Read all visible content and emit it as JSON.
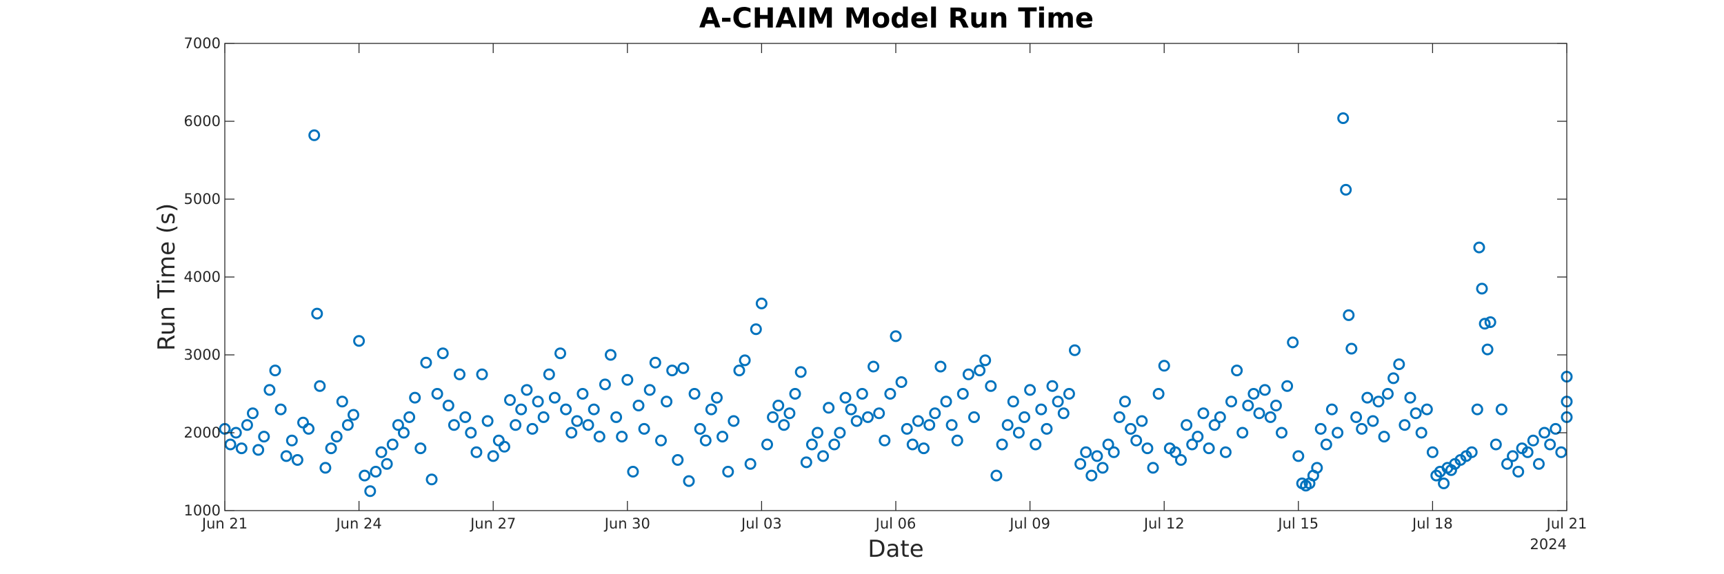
{
  "chart_data": {
    "type": "scatter",
    "title": "A-CHAIM Model Run Time",
    "xlabel": "Date",
    "ylabel": "Run Time (s)",
    "x_secondary_label": "2024",
    "x_type": "date",
    "xlim": [
      "2024-06-21",
      "2024-07-21"
    ],
    "ylim": [
      1000,
      7000
    ],
    "x_tick_labels": [
      "Jun 21",
      "Jun 24",
      "Jun 27",
      "Jun 30",
      "Jul 03",
      "Jul 06",
      "Jul 09",
      "Jul 12",
      "Jul 15",
      "Jul 18",
      "Jul 21"
    ],
    "x_tick_dates": [
      "2024-06-21",
      "2024-06-24",
      "2024-06-27",
      "2024-06-30",
      "2024-07-03",
      "2024-07-06",
      "2024-07-09",
      "2024-07-12",
      "2024-07-15",
      "2024-07-18",
      "2024-07-21"
    ],
    "y_ticks": [
      1000,
      2000,
      3000,
      4000,
      5000,
      6000,
      7000
    ],
    "grid": false,
    "legend": "none",
    "marker": "circle-open",
    "color": "#0072BD",
    "series": [
      {
        "points": [
          [
            "2024-06-21 00:00",
            2050
          ],
          [
            "2024-06-21 03:00",
            1850
          ],
          [
            "2024-06-21 06:00",
            2000
          ],
          [
            "2024-06-21 09:00",
            1800
          ],
          [
            "2024-06-21 12:00",
            2100
          ],
          [
            "2024-06-21 15:00",
            2250
          ],
          [
            "2024-06-21 18:00",
            1780
          ],
          [
            "2024-06-21 21:00",
            1950
          ],
          [
            "2024-06-22 00:00",
            2550
          ],
          [
            "2024-06-22 03:00",
            2800
          ],
          [
            "2024-06-22 06:00",
            2300
          ],
          [
            "2024-06-22 09:00",
            1700
          ],
          [
            "2024-06-22 12:00",
            1900
          ],
          [
            "2024-06-22 15:00",
            1650
          ],
          [
            "2024-06-22 18:00",
            2130
          ],
          [
            "2024-06-22 21:00",
            2050
          ],
          [
            "2024-06-23 00:00",
            5820
          ],
          [
            "2024-06-23 01:30",
            3530
          ],
          [
            "2024-06-23 03:00",
            2600
          ],
          [
            "2024-06-23 06:00",
            1550
          ],
          [
            "2024-06-23 09:00",
            1800
          ],
          [
            "2024-06-23 12:00",
            1950
          ],
          [
            "2024-06-23 15:00",
            2400
          ],
          [
            "2024-06-23 18:00",
            2100
          ],
          [
            "2024-06-23 21:00",
            2230
          ],
          [
            "2024-06-24 00:00",
            3180
          ],
          [
            "2024-06-24 03:00",
            1450
          ],
          [
            "2024-06-24 06:00",
            1250
          ],
          [
            "2024-06-24 09:00",
            1500
          ],
          [
            "2024-06-24 12:00",
            1750
          ],
          [
            "2024-06-24 15:00",
            1600
          ],
          [
            "2024-06-24 18:00",
            1850
          ],
          [
            "2024-06-24 21:00",
            2100
          ],
          [
            "2024-06-25 00:00",
            2000
          ],
          [
            "2024-06-25 03:00",
            2200
          ],
          [
            "2024-06-25 06:00",
            2450
          ],
          [
            "2024-06-25 09:00",
            1800
          ],
          [
            "2024-06-25 12:00",
            2900
          ],
          [
            "2024-06-25 15:00",
            1400
          ],
          [
            "2024-06-25 18:00",
            2500
          ],
          [
            "2024-06-25 21:00",
            3020
          ],
          [
            "2024-06-26 00:00",
            2350
          ],
          [
            "2024-06-26 03:00",
            2100
          ],
          [
            "2024-06-26 06:00",
            2750
          ],
          [
            "2024-06-26 09:00",
            2200
          ],
          [
            "2024-06-26 12:00",
            2000
          ],
          [
            "2024-06-26 15:00",
            1750
          ],
          [
            "2024-06-26 18:00",
            2750
          ],
          [
            "2024-06-26 21:00",
            2150
          ],
          [
            "2024-06-27 00:00",
            1700
          ],
          [
            "2024-06-27 03:00",
            1900
          ],
          [
            "2024-06-27 06:00",
            1820
          ],
          [
            "2024-06-27 09:00",
            2420
          ],
          [
            "2024-06-27 12:00",
            2100
          ],
          [
            "2024-06-27 15:00",
            2300
          ],
          [
            "2024-06-27 18:00",
            2550
          ],
          [
            "2024-06-27 21:00",
            2050
          ],
          [
            "2024-06-28 00:00",
            2400
          ],
          [
            "2024-06-28 03:00",
            2200
          ],
          [
            "2024-06-28 06:00",
            2750
          ],
          [
            "2024-06-28 09:00",
            2450
          ],
          [
            "2024-06-28 12:00",
            3020
          ],
          [
            "2024-06-28 15:00",
            2300
          ],
          [
            "2024-06-28 18:00",
            2000
          ],
          [
            "2024-06-28 21:00",
            2150
          ],
          [
            "2024-06-29 00:00",
            2500
          ],
          [
            "2024-06-29 03:00",
            2100
          ],
          [
            "2024-06-29 06:00",
            2300
          ],
          [
            "2024-06-29 09:00",
            1950
          ],
          [
            "2024-06-29 12:00",
            2620
          ],
          [
            "2024-06-29 15:00",
            3000
          ],
          [
            "2024-06-29 18:00",
            2200
          ],
          [
            "2024-06-29 21:00",
            1950
          ],
          [
            "2024-06-30 00:00",
            2680
          ],
          [
            "2024-06-30 03:00",
            1500
          ],
          [
            "2024-06-30 06:00",
            2350
          ],
          [
            "2024-06-30 09:00",
            2050
          ],
          [
            "2024-06-30 12:00",
            2550
          ],
          [
            "2024-06-30 15:00",
            2900
          ],
          [
            "2024-06-30 18:00",
            1900
          ],
          [
            "2024-06-30 21:00",
            2400
          ],
          [
            "2024-07-01 00:00",
            2800
          ],
          [
            "2024-07-01 03:00",
            1650
          ],
          [
            "2024-07-01 06:00",
            2830
          ],
          [
            "2024-07-01 09:00",
            1380
          ],
          [
            "2024-07-01 12:00",
            2500
          ],
          [
            "2024-07-01 15:00",
            2050
          ],
          [
            "2024-07-01 18:00",
            1900
          ],
          [
            "2024-07-01 21:00",
            2300
          ],
          [
            "2024-07-02 00:00",
            2450
          ],
          [
            "2024-07-02 03:00",
            1950
          ],
          [
            "2024-07-02 06:00",
            1500
          ],
          [
            "2024-07-02 09:00",
            2150
          ],
          [
            "2024-07-02 12:00",
            2800
          ],
          [
            "2024-07-02 15:00",
            2930
          ],
          [
            "2024-07-02 18:00",
            1600
          ],
          [
            "2024-07-02 21:00",
            3330
          ],
          [
            "2024-07-03 00:00",
            3660
          ],
          [
            "2024-07-03 03:00",
            1850
          ],
          [
            "2024-07-03 06:00",
            2200
          ],
          [
            "2024-07-03 09:00",
            2350
          ],
          [
            "2024-07-03 12:00",
            2100
          ],
          [
            "2024-07-03 15:00",
            2250
          ],
          [
            "2024-07-03 18:00",
            2500
          ],
          [
            "2024-07-03 21:00",
            2780
          ],
          [
            "2024-07-04 00:00",
            1620
          ],
          [
            "2024-07-04 03:00",
            1850
          ],
          [
            "2024-07-04 06:00",
            2000
          ],
          [
            "2024-07-04 09:00",
            1700
          ],
          [
            "2024-07-04 12:00",
            2320
          ],
          [
            "2024-07-04 15:00",
            1850
          ],
          [
            "2024-07-04 18:00",
            2000
          ],
          [
            "2024-07-04 21:00",
            2450
          ],
          [
            "2024-07-05 00:00",
            2300
          ],
          [
            "2024-07-05 03:00",
            2150
          ],
          [
            "2024-07-05 06:00",
            2500
          ],
          [
            "2024-07-05 09:00",
            2200
          ],
          [
            "2024-07-05 12:00",
            2850
          ],
          [
            "2024-07-05 15:00",
            2250
          ],
          [
            "2024-07-05 18:00",
            1900
          ],
          [
            "2024-07-05 21:00",
            2500
          ],
          [
            "2024-07-06 00:00",
            3240
          ],
          [
            "2024-07-06 03:00",
            2650
          ],
          [
            "2024-07-06 06:00",
            2050
          ],
          [
            "2024-07-06 09:00",
            1850
          ],
          [
            "2024-07-06 12:00",
            2150
          ],
          [
            "2024-07-06 15:00",
            1800
          ],
          [
            "2024-07-06 18:00",
            2100
          ],
          [
            "2024-07-06 21:00",
            2250
          ],
          [
            "2024-07-07 00:00",
            2850
          ],
          [
            "2024-07-07 03:00",
            2400
          ],
          [
            "2024-07-07 06:00",
            2100
          ],
          [
            "2024-07-07 09:00",
            1900
          ],
          [
            "2024-07-07 12:00",
            2500
          ],
          [
            "2024-07-07 15:00",
            2750
          ],
          [
            "2024-07-07 18:00",
            2200
          ],
          [
            "2024-07-07 21:00",
            2800
          ],
          [
            "2024-07-08 00:00",
            2930
          ],
          [
            "2024-07-08 03:00",
            2600
          ],
          [
            "2024-07-08 06:00",
            1450
          ],
          [
            "2024-07-08 09:00",
            1850
          ],
          [
            "2024-07-08 12:00",
            2100
          ],
          [
            "2024-07-08 15:00",
            2400
          ],
          [
            "2024-07-08 18:00",
            2000
          ],
          [
            "2024-07-08 21:00",
            2200
          ],
          [
            "2024-07-09 00:00",
            2550
          ],
          [
            "2024-07-09 03:00",
            1850
          ],
          [
            "2024-07-09 06:00",
            2300
          ],
          [
            "2024-07-09 09:00",
            2050
          ],
          [
            "2024-07-09 12:00",
            2600
          ],
          [
            "2024-07-09 15:00",
            2400
          ],
          [
            "2024-07-09 18:00",
            2250
          ],
          [
            "2024-07-09 21:00",
            2500
          ],
          [
            "2024-07-10 00:00",
            3060
          ],
          [
            "2024-07-10 03:00",
            1600
          ],
          [
            "2024-07-10 06:00",
            1750
          ],
          [
            "2024-07-10 09:00",
            1450
          ],
          [
            "2024-07-10 12:00",
            1700
          ],
          [
            "2024-07-10 15:00",
            1550
          ],
          [
            "2024-07-10 18:00",
            1850
          ],
          [
            "2024-07-10 21:00",
            1750
          ],
          [
            "2024-07-11 00:00",
            2200
          ],
          [
            "2024-07-11 03:00",
            2400
          ],
          [
            "2024-07-11 06:00",
            2050
          ],
          [
            "2024-07-11 09:00",
            1900
          ],
          [
            "2024-07-11 12:00",
            2150
          ],
          [
            "2024-07-11 15:00",
            1800
          ],
          [
            "2024-07-11 18:00",
            1550
          ],
          [
            "2024-07-11 21:00",
            2500
          ],
          [
            "2024-07-12 00:00",
            2860
          ],
          [
            "2024-07-12 03:00",
            1800
          ],
          [
            "2024-07-12 06:00",
            1750
          ],
          [
            "2024-07-12 09:00",
            1650
          ],
          [
            "2024-07-12 12:00",
            2100
          ],
          [
            "2024-07-12 15:00",
            1850
          ],
          [
            "2024-07-12 18:00",
            1950
          ],
          [
            "2024-07-12 21:00",
            2250
          ],
          [
            "2024-07-13 00:00",
            1800
          ],
          [
            "2024-07-13 03:00",
            2100
          ],
          [
            "2024-07-13 06:00",
            2200
          ],
          [
            "2024-07-13 09:00",
            1750
          ],
          [
            "2024-07-13 12:00",
            2400
          ],
          [
            "2024-07-13 15:00",
            2800
          ],
          [
            "2024-07-13 18:00",
            2000
          ],
          [
            "2024-07-13 21:00",
            2350
          ],
          [
            "2024-07-14 00:00",
            2500
          ],
          [
            "2024-07-14 03:00",
            2250
          ],
          [
            "2024-07-14 06:00",
            2550
          ],
          [
            "2024-07-14 09:00",
            2200
          ],
          [
            "2024-07-14 12:00",
            2350
          ],
          [
            "2024-07-14 15:00",
            2000
          ],
          [
            "2024-07-14 18:00",
            2600
          ],
          [
            "2024-07-14 21:00",
            3160
          ],
          [
            "2024-07-15 00:00",
            1700
          ],
          [
            "2024-07-15 02:00",
            1350
          ],
          [
            "2024-07-15 04:00",
            1320
          ],
          [
            "2024-07-15 06:00",
            1350
          ],
          [
            "2024-07-15 08:00",
            1450
          ],
          [
            "2024-07-15 10:00",
            1550
          ],
          [
            "2024-07-15 12:00",
            2050
          ],
          [
            "2024-07-15 15:00",
            1850
          ],
          [
            "2024-07-15 18:00",
            2300
          ],
          [
            "2024-07-15 21:00",
            2000
          ],
          [
            "2024-07-16 00:00",
            6040
          ],
          [
            "2024-07-16 01:30",
            5120
          ],
          [
            "2024-07-16 03:00",
            3510
          ],
          [
            "2024-07-16 04:30",
            3080
          ],
          [
            "2024-07-16 07:00",
            2200
          ],
          [
            "2024-07-16 10:00",
            2050
          ],
          [
            "2024-07-16 13:00",
            2450
          ],
          [
            "2024-07-16 16:00",
            2150
          ],
          [
            "2024-07-16 19:00",
            2400
          ],
          [
            "2024-07-16 22:00",
            1950
          ],
          [
            "2024-07-17 00:00",
            2500
          ],
          [
            "2024-07-17 03:00",
            2700
          ],
          [
            "2024-07-17 06:00",
            2880
          ],
          [
            "2024-07-17 09:00",
            2100
          ],
          [
            "2024-07-17 12:00",
            2450
          ],
          [
            "2024-07-17 15:00",
            2250
          ],
          [
            "2024-07-17 18:00",
            2000
          ],
          [
            "2024-07-17 21:00",
            2300
          ],
          [
            "2024-07-18 00:00",
            1750
          ],
          [
            "2024-07-18 02:00",
            1450
          ],
          [
            "2024-07-18 04:00",
            1500
          ],
          [
            "2024-07-18 06:00",
            1350
          ],
          [
            "2024-07-18 08:00",
            1550
          ],
          [
            "2024-07-18 10:00",
            1520
          ],
          [
            "2024-07-18 12:00",
            1600
          ],
          [
            "2024-07-18 15:00",
            1650
          ],
          [
            "2024-07-18 18:00",
            1700
          ],
          [
            "2024-07-18 21:00",
            1750
          ],
          [
            "2024-07-19 00:00",
            2300
          ],
          [
            "2024-07-19 01:00",
            4380
          ],
          [
            "2024-07-19 02:30",
            3850
          ],
          [
            "2024-07-19 04:00",
            3400
          ],
          [
            "2024-07-19 05:30",
            3070
          ],
          [
            "2024-07-19 07:00",
            3420
          ],
          [
            "2024-07-19 10:00",
            1850
          ],
          [
            "2024-07-19 13:00",
            2300
          ],
          [
            "2024-07-19 16:00",
            1600
          ],
          [
            "2024-07-19 19:00",
            1700
          ],
          [
            "2024-07-19 22:00",
            1500
          ],
          [
            "2024-07-20 00:00",
            1800
          ],
          [
            "2024-07-20 03:00",
            1750
          ],
          [
            "2024-07-20 06:00",
            1900
          ],
          [
            "2024-07-20 09:00",
            1600
          ],
          [
            "2024-07-20 12:00",
            2000
          ],
          [
            "2024-07-20 15:00",
            1850
          ],
          [
            "2024-07-20 18:00",
            2050
          ],
          [
            "2024-07-20 21:00",
            1750
          ],
          [
            "2024-07-21 00:00",
            2200
          ],
          [
            "2024-07-21 00:00",
            2400
          ],
          [
            "2024-07-21 00:00",
            2720
          ]
        ]
      }
    ]
  }
}
